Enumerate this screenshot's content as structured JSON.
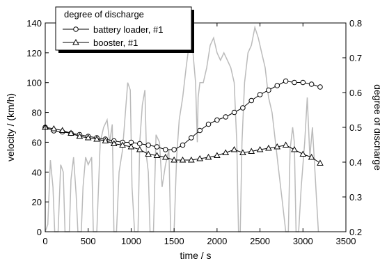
{
  "chart_data": {
    "type": "line",
    "x_label": "time / s",
    "y_label": "velocity / (km/h)",
    "y2_label": "degree of discharge",
    "legend_title": "degree of discharge",
    "legend_position": "upper left",
    "xlim": [
      0,
      3500
    ],
    "xticks": [
      0,
      500,
      1000,
      1500,
      2000,
      2500,
      3000,
      3500
    ],
    "ylim": [
      0,
      140
    ],
    "yticks": [
      0,
      20,
      40,
      60,
      80,
      100,
      120,
      140
    ],
    "y2lim": [
      0.2,
      0.8
    ],
    "y2ticks": [
      0.2,
      0.3,
      0.4,
      0.5,
      0.6,
      0.7,
      0.8
    ],
    "series": [
      {
        "color": "#bbbbbb",
        "marker": "none",
        "x": [
          0,
          30,
          60,
          90,
          110,
          150,
          180,
          210,
          230,
          280,
          300,
          330,
          360,
          380,
          420,
          440,
          470,
          500,
          540,
          560,
          600,
          640,
          680,
          720,
          750,
          780,
          800,
          830,
          860,
          900,
          940,
          960,
          990,
          1010,
          1040,
          1080,
          1100,
          1130,
          1160,
          1180,
          1200,
          1220,
          1260,
          1290,
          1330,
          1360,
          1400,
          1440,
          1460,
          1500,
          1530,
          1560,
          1600,
          1640,
          1680,
          1720,
          1750,
          1770,
          1780,
          1800,
          1840,
          1880,
          1920,
          1960,
          2000,
          2040,
          2080,
          2120,
          2160,
          2200,
          2230,
          2250,
          2270,
          2290,
          2320,
          2360,
          2400,
          2440,
          2480,
          2520,
          2560,
          2600,
          2640,
          2680,
          2720,
          2760,
          2800,
          2830,
          2850,
          2880,
          2900,
          2920,
          2950,
          2980,
          3020,
          3050,
          3080,
          3110,
          3140,
          3160,
          3180
        ],
        "values": [
          0,
          5,
          48,
          30,
          0,
          0,
          45,
          40,
          0,
          0,
          35,
          50,
          25,
          0,
          0,
          30,
          50,
          45,
          50,
          0,
          0,
          60,
          70,
          75,
          60,
          72,
          0,
          0,
          40,
          55,
          85,
          100,
          95,
          30,
          0,
          0,
          60,
          85,
          95,
          50,
          40,
          0,
          0,
          65,
          60,
          30,
          45,
          55,
          0,
          0,
          50,
          75,
          90,
          110,
          128,
          120,
          100,
          60,
          90,
          100,
          100,
          110,
          125,
          130,
          120,
          115,
          120,
          115,
          110,
          100,
          60,
          0,
          0,
          60,
          100,
          120,
          125,
          137,
          130,
          120,
          110,
          90,
          80,
          60,
          40,
          20,
          0,
          0,
          55,
          70,
          60,
          0,
          0,
          30,
          60,
          90,
          50,
          70,
          40,
          20,
          0
        ]
      },
      {
        "name": "battery loader, #1",
        "color": "#000000",
        "marker": "circle",
        "axis": "y2",
        "x": [
          0,
          100,
          200,
          300,
          400,
          500,
          600,
          700,
          800,
          900,
          1000,
          1100,
          1200,
          1300,
          1400,
          1500,
          1600,
          1700,
          1800,
          1900,
          2000,
          2100,
          2200,
          2300,
          2400,
          2500,
          2600,
          2700,
          2800,
          2900,
          3000,
          3100,
          3200
        ],
        "values": [
          0.5,
          0.49,
          0.487,
          0.483,
          0.479,
          0.474,
          0.47,
          0.466,
          0.461,
          0.457,
          0.457,
          0.453,
          0.449,
          0.444,
          0.436,
          0.436,
          0.449,
          0.47,
          0.491,
          0.509,
          0.521,
          0.53,
          0.543,
          0.556,
          0.577,
          0.594,
          0.607,
          0.62,
          0.633,
          0.629,
          0.629,
          0.624,
          0.616
        ]
      },
      {
        "name": "booster, #1",
        "color": "#000000",
        "marker": "triangle",
        "axis": "y2",
        "x": [
          0,
          100,
          200,
          300,
          400,
          500,
          600,
          700,
          800,
          900,
          1000,
          1100,
          1200,
          1300,
          1400,
          1500,
          1600,
          1700,
          1800,
          1900,
          2000,
          2100,
          2200,
          2300,
          2400,
          2500,
          2600,
          2700,
          2800,
          2900,
          3000,
          3100,
          3200
        ],
        "values": [
          0.5,
          0.496,
          0.491,
          0.483,
          0.474,
          0.47,
          0.466,
          0.461,
          0.453,
          0.449,
          0.444,
          0.436,
          0.423,
          0.419,
          0.414,
          0.406,
          0.406,
          0.406,
          0.41,
          0.414,
          0.419,
          0.427,
          0.436,
          0.427,
          0.431,
          0.436,
          0.44,
          0.444,
          0.449,
          0.436,
          0.423,
          0.414,
          0.397
        ]
      }
    ]
  }
}
